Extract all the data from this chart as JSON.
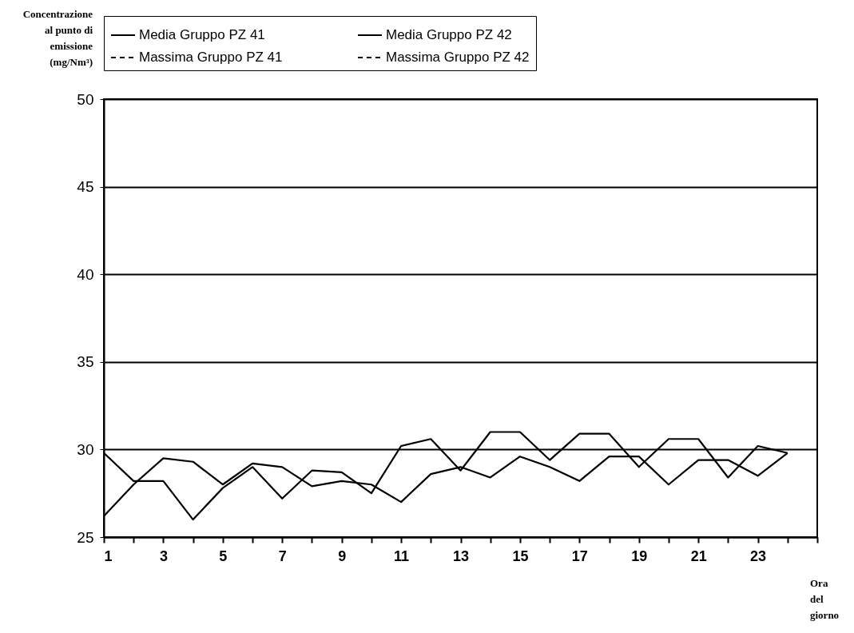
{
  "chart_data": {
    "type": "line",
    "ylabel": "Concentrazione al punto di emissione (mg/Nm³)",
    "xlabel": "Ora del giorno",
    "x": [
      1,
      2,
      3,
      4,
      5,
      6,
      7,
      8,
      9,
      10,
      11,
      12,
      13,
      14,
      15,
      16,
      17,
      18,
      19,
      20,
      21,
      22,
      23,
      24
    ],
    "series": [
      {
        "name": "Media Gruppo PZ 41",
        "color": "#000000",
        "line_style": "solid",
        "values": [
          29.8,
          28.2,
          28.2,
          26.0,
          27.8,
          29.0,
          27.2,
          28.8,
          28.7,
          27.5,
          30.2,
          30.6,
          28.8,
          31.0,
          31.0,
          29.4,
          30.9,
          30.9,
          29.0,
          30.6,
          30.6,
          28.4,
          30.2,
          29.8
        ]
      },
      {
        "name": "Media Gruppo PZ 42",
        "color": "#000000",
        "line_style": "solid",
        "values": [
          26.2,
          28.0,
          29.5,
          29.3,
          28.0,
          29.2,
          29.0,
          27.9,
          28.2,
          28.0,
          27.0,
          28.6,
          29.0,
          28.4,
          29.6,
          29.0,
          28.2,
          29.6,
          29.6,
          28.0,
          29.4,
          29.4,
          28.5,
          29.8
        ]
      },
      {
        "name": "Massima Gruppo PZ 41",
        "color": "#000000",
        "line_style": "dashed",
        "values": [
          null,
          null,
          null,
          null,
          null,
          null,
          null,
          null,
          null,
          null,
          null,
          null,
          null,
          null,
          null,
          null,
          null,
          null,
          null,
          null,
          null,
          null,
          null,
          null
        ]
      },
      {
        "name": "Massima Gruppo PZ 42",
        "color": "#000000",
        "line_style": "dashed",
        "values": [
          null,
          null,
          null,
          null,
          null,
          null,
          null,
          null,
          null,
          null,
          null,
          null,
          null,
          null,
          null,
          null,
          null,
          null,
          null,
          null,
          null,
          null,
          null,
          null
        ]
      }
    ],
    "xlim": [
      1,
      25
    ],
    "xticks": [
      1,
      {
        "value": 2,
        "label": null
      },
      3,
      {
        "value": 4,
        "label": null
      },
      5,
      {
        "value": 6,
        "label": null
      },
      7,
      {
        "value": 8,
        "label": null
      },
      9,
      {
        "value": 10,
        "label": null
      },
      11,
      {
        "value": 12,
        "label": null
      },
      13,
      {
        "value": 14,
        "label": null
      },
      15,
      {
        "value": 16,
        "label": null
      },
      17,
      {
        "value": 18,
        "label": null
      },
      19,
      {
        "value": 20,
        "label": null
      },
      21,
      {
        "value": 22,
        "label": null
      },
      23,
      {
        "value": 24,
        "label": null
      },
      {
        "value": 25,
        "label": null
      }
    ],
    "ylim": [
      25,
      50
    ],
    "yticks": [
      25,
      30,
      35,
      40,
      45,
      50
    ],
    "grid": "y",
    "legend": "top",
    "marker": "none"
  }
}
